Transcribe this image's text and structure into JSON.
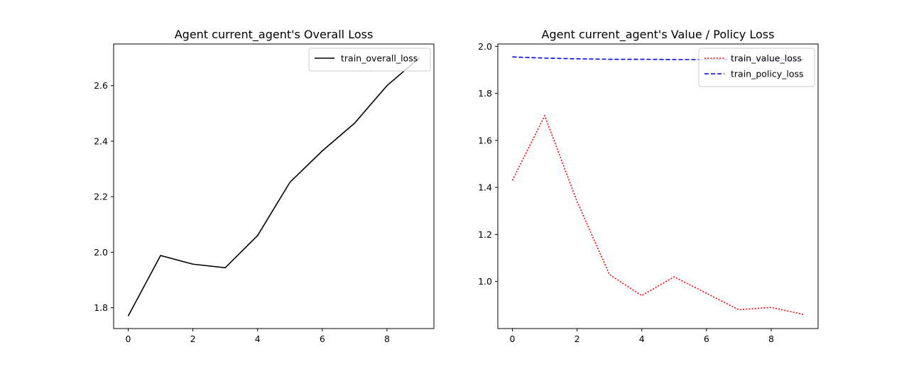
{
  "chart_data": [
    {
      "type": "line",
      "title": "Agent current_agent's Overall Loss",
      "xlabel": "",
      "ylabel": "",
      "x": [
        0,
        1,
        2,
        3,
        4,
        5,
        6,
        7,
        8,
        9
      ],
      "xlim": [
        -0.45,
        9.45
      ],
      "ylim": [
        1.725,
        2.75
      ],
      "xticks": [
        0,
        2,
        4,
        6,
        8
      ],
      "yticks": [
        1.8,
        2.0,
        2.2,
        2.4,
        2.6
      ],
      "grid": false,
      "legend_position": "top-right",
      "series": [
        {
          "name": "train_overall_loss",
          "color": "#000000",
          "dash": "solid",
          "values": [
            1.77,
            1.988,
            1.957,
            1.944,
            2.06,
            2.252,
            2.365,
            2.465,
            2.6,
            2.7
          ]
        }
      ]
    },
    {
      "type": "line",
      "title": "Agent current_agent's Value / Policy Loss",
      "xlabel": "",
      "ylabel": "",
      "x": [
        0,
        1,
        2,
        3,
        4,
        5,
        6,
        7,
        8,
        9
      ],
      "xlim": [
        -0.45,
        9.45
      ],
      "ylim": [
        0.8,
        2.01
      ],
      "xticks": [
        0,
        2,
        4,
        6,
        8
      ],
      "yticks": [
        1.0,
        1.2,
        1.4,
        1.6,
        1.8,
        2.0
      ],
      "grid": false,
      "legend_position": "top-right",
      "series": [
        {
          "name": "train_value_loss",
          "color": "#ff0000",
          "dash": "dotted",
          "values": [
            1.43,
            1.705,
            1.34,
            1.03,
            0.94,
            1.02,
            0.95,
            0.88,
            0.89,
            0.86
          ]
        },
        {
          "name": "train_policy_loss",
          "color": "#0000ff",
          "dash": "dashed",
          "values": [
            1.955,
            1.95,
            1.947,
            1.945,
            1.945,
            1.944,
            1.944,
            1.944,
            1.944,
            1.944
          ]
        }
      ]
    }
  ]
}
